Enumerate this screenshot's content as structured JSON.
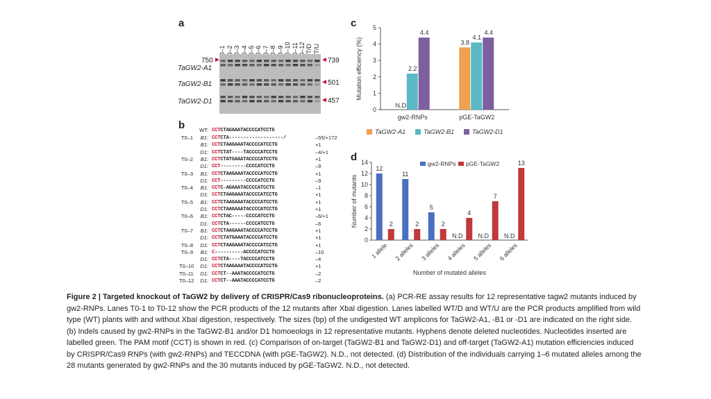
{
  "panels": {
    "a": "a",
    "b": "b",
    "c": "c",
    "d": "d"
  },
  "gel": {
    "lanes": [
      "T0–1",
      "T0–2",
      "T0–3",
      "T0–4",
      "T0–5",
      "T0–6",
      "T0–7",
      "T0–8",
      "T0–9",
      "T0–10",
      "T0–11",
      "T0–12",
      "WT/D",
      "WT/U"
    ],
    "left_marker": "750",
    "rows": [
      "TaGW2-A1",
      "TaGW2-B1",
      "TaGW2-D1"
    ],
    "right_sizes": [
      "739",
      "501",
      "457"
    ]
  },
  "panel_b": {
    "wt_label": "WT:",
    "wt_seq_pam": "CCT",
    "wt_seq_rest": "CTAGAAATACCCCATCCTG",
    "rows": [
      {
        "mutant": "T0–1",
        "gene": "B1:",
        "pam": "CCT",
        "seq": "CTA-------------------/",
        "indel": "–55/+172"
      },
      {
        "mutant": "",
        "gene": "B1:",
        "pam": "CCT",
        "seq": "CTAAGAAATACCCCATCCTG",
        "indel": "+1"
      },
      {
        "mutant": "",
        "gene": "D1:",
        "pam": "CCT",
        "seq": "CTAT----TACCCCATCCTG",
        "indel": "–4/+1"
      },
      {
        "mutant": "T0–2",
        "gene": "B1:",
        "pam": "CCT",
        "seq": "CTATGAAATACCCCATCCTG",
        "indel": "+1"
      },
      {
        "mutant": "",
        "gene": "D1:",
        "pam": "CCT",
        "seq": "---------CCCCATCCTG",
        "indel": "–9"
      },
      {
        "mutant": "T0–3",
        "gene": "B1:",
        "pam": "CCT",
        "seq": "CTAAGAAATACCCCATCCTG",
        "indel": "+1"
      },
      {
        "mutant": "",
        "gene": "D1:",
        "pam": "CCT",
        "seq": "---------CCCCATCCTG",
        "indel": "–9"
      },
      {
        "mutant": "T0–4",
        "gene": "B1:",
        "pam": "CCT",
        "seq": "C-AGAAATACCCCATCCTG",
        "indel": "–1"
      },
      {
        "mutant": "",
        "gene": "D1:",
        "pam": "CCT",
        "seq": "CTAAGAAATACCCCATCCTG",
        "indel": "+1"
      },
      {
        "mutant": "T0–5",
        "gene": "B1:",
        "pam": "CCT",
        "seq": "CTAAGAAATACCCCATCCTG",
        "indel": "+1"
      },
      {
        "mutant": "",
        "gene": "D1:",
        "pam": "CCT",
        "seq": "CTAAGAAATACCCCATCCTG",
        "indel": "+1"
      },
      {
        "mutant": "T0–6",
        "gene": "B1:",
        "pam": "CCT",
        "seq": "CTAC-----CCCCATCCTG",
        "indel": "–6/+1"
      },
      {
        "mutant": "",
        "gene": "D1:",
        "pam": "CCT",
        "seq": "CTA------CCCCATCCTG",
        "indel": "–6"
      },
      {
        "mutant": "T0–7",
        "gene": "B1:",
        "pam": "CCT",
        "seq": "CTAAGAAATACCCCATCCTG",
        "indel": "+1"
      },
      {
        "mutant": "",
        "gene": "D1:",
        "pam": "CCT",
        "seq": "CTATGAAATACCCCATCCTG",
        "indel": "+1"
      },
      {
        "mutant": "T0–8",
        "gene": "D1:",
        "pam": "CCT",
        "seq": "CTAAGAAATACCCCATCCTG",
        "indel": "+1"
      },
      {
        "mutant": "T0–9",
        "gene": "B1:",
        "pam": "C",
        "seq": "----------ACCCCATCCTG",
        "indel": "–10"
      },
      {
        "mutant": "",
        "gene": "D1:",
        "pam": "CCT",
        "seq": "CTA----TACCCCATCCTG",
        "indel": "–4"
      },
      {
        "mutant": "T0–10",
        "gene": "D1:",
        "pam": "CCT",
        "seq": "CTAAGAAATACCCCATCCTG",
        "indel": "+1"
      },
      {
        "mutant": "T0–11",
        "gene": "D1:",
        "pam": "CCT",
        "seq": "CT--AAATACCCCATCCTG",
        "indel": "–2"
      },
      {
        "mutant": "T0–12",
        "gene": "D1:",
        "pam": "CCT",
        "seq": "CT--AAATACCCCATCCTG",
        "indel": "–2"
      }
    ]
  },
  "chart_data": [
    {
      "type": "bar",
      "panel": "c",
      "ylabel": "Mutation efficiency (%)",
      "ylim": [
        0,
        5
      ],
      "yticks": [
        "0",
        "1",
        "2",
        "3",
        "4",
        "5"
      ],
      "categories": [
        "gw2-RNPs",
        "pGE-TaGW2"
      ],
      "series": [
        {
          "name": "TaGW2-A1",
          "color": "#f0a050",
          "values": [
            0,
            3.8
          ],
          "labels": [
            "N.D",
            "3.8"
          ]
        },
        {
          "name": "TaGW2-B1",
          "color": "#5bb8c4",
          "values": [
            2.2,
            4.1
          ],
          "labels": [
            "2.2",
            "4.1"
          ]
        },
        {
          "name": "TaGW2-D1",
          "color": "#7e5fa0",
          "values": [
            4.4,
            4.4
          ],
          "labels": [
            "4.4",
            "4.4"
          ]
        }
      ],
      "legend_position": "bottom"
    },
    {
      "type": "bar",
      "panel": "d",
      "xlabel": "Number of mutated alleles",
      "ylabel": "Number of mutants",
      "ylim": [
        0,
        14
      ],
      "yticks": [
        "0",
        "2",
        "4",
        "6",
        "8",
        "10",
        "12",
        "14"
      ],
      "categories": [
        "1 allele",
        "2 alleles",
        "3 alleles",
        "4 alleles",
        "5 alleles",
        "6 alleles"
      ],
      "series": [
        {
          "name": "gw2-RNPs",
          "color": "#4a6fc0",
          "values": [
            12,
            11,
            5,
            0,
            0,
            0
          ],
          "labels": [
            "12",
            "11",
            "5",
            "N.D",
            "N.D",
            "N.D"
          ]
        },
        {
          "name": "pGE-TaGW2",
          "color": "#c0393b",
          "values": [
            2,
            2,
            2,
            4,
            7,
            13
          ],
          "labels": [
            "2",
            "2",
            "2",
            "4",
            "7",
            "13"
          ]
        }
      ],
      "legend_position": "top"
    }
  ],
  "caption": {
    "title": "Figure 2 | Targeted knockout of TaGW2 by delivery of CRISPR/Cas9 ribonucleoproteins.",
    "body": "(a) PCR-RE assay results for 12 representative tagw2 mutants induced by gw2-RNPs. Lanes T0-1 to T0-12 show the PCR products of the 12 mutants after XbaI digestion. Lanes labelled WT/D and WT/U are the PCR products amplified from wild type (WT) plants with and without XbaI digestion, respectively. The sizes (bp) of the undigested WT amplicons for TaGW2-A1, -B1 or -D1 are indicated on the right side. (b) Indels caused by gw2-RNPs in the TaGW2-B1 and/or D1 homoeologs in 12 representative mutants. Hyphens denote deleted nucleotides. Nucleotides inserted are labelled green. The PAM motif (CCT) is shown in red. (c) Comparison of on-target (TaGW2-B1 and TaGW2-D1) and off-target (TaGW2-A1) mutation efficiencies induced by CRISPR/Cas9 RNPs (with gw2-RNPs) and TECCDNA (with pGE-TaGW2). N.D., not detected. (d) Distribution of the individuals carrying 1–6 mutated alleles among the 28 mutants generated by gw2-RNPs and the 30 mutants induced by pGE-TaGW2. N.D., not detected."
  }
}
